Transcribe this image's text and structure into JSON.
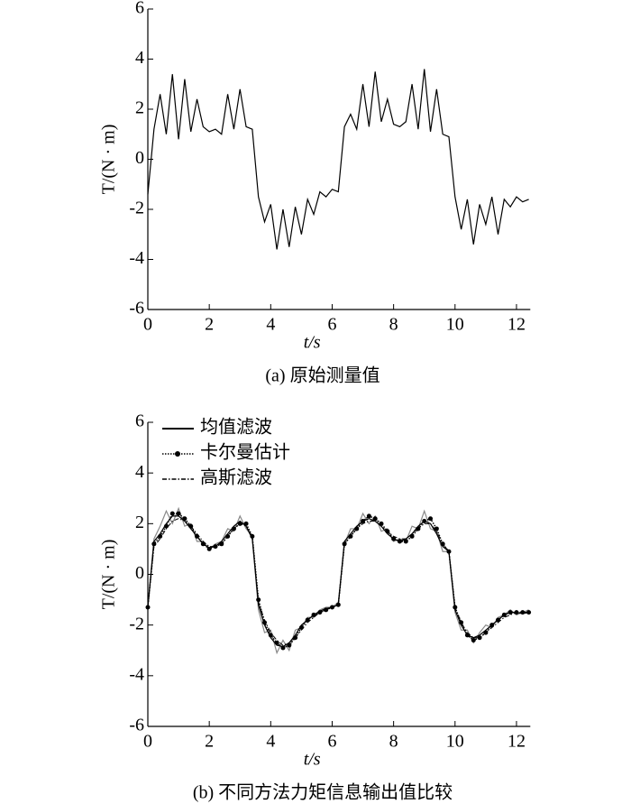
{
  "chart_data": [
    {
      "type": "line",
      "caption": "(a) 原始测量值",
      "xlabel": "t/s",
      "ylabel": "T/(N · m)",
      "xlim": [
        0,
        12.45
      ],
      "xticks": [
        0,
        2,
        4,
        6,
        8,
        10,
        12
      ],
      "ylim": [
        -6,
        6
      ],
      "yticks": [
        -6,
        -4,
        -2,
        0,
        2,
        4,
        6
      ],
      "x": [
        0,
        0.2,
        0.4,
        0.6,
        0.8,
        1,
        1.2,
        1.4,
        1.6,
        1.8,
        2,
        2.2,
        2.4,
        2.6,
        2.8,
        3,
        3.2,
        3.4,
        3.6,
        3.8,
        4,
        4.2,
        4.4,
        4.6,
        4.8,
        5,
        5.2,
        5.4,
        5.6,
        5.8,
        6,
        6.2,
        6.4,
        6.6,
        6.8,
        7,
        7.2,
        7.4,
        7.6,
        7.8,
        8,
        8.2,
        8.4,
        8.6,
        8.8,
        9,
        9.2,
        9.4,
        9.6,
        9.8,
        10,
        10.2,
        10.4,
        10.6,
        10.8,
        11,
        11.2,
        11.4,
        11.6,
        11.8,
        12,
        12.2,
        12.4
      ],
      "series": [
        {
          "color": "#000000",
          "style": "solid",
          "values": [
            -1.4,
            1.2,
            2.6,
            1.0,
            3.4,
            0.8,
            3.2,
            1.1,
            2.4,
            1.3,
            1.1,
            1.2,
            1.0,
            2.6,
            1.2,
            2.8,
            1.3,
            1.2,
            -1.5,
            -2.5,
            -1.8,
            -3.6,
            -2.0,
            -3.5,
            -1.9,
            -3.0,
            -1.6,
            -2.2,
            -1.3,
            -1.5,
            -1.2,
            -1.3,
            1.3,
            1.8,
            1.2,
            3.0,
            1.3,
            3.5,
            1.5,
            2.4,
            1.4,
            1.3,
            1.5,
            3.0,
            1.2,
            3.6,
            1.1,
            2.8,
            1.0,
            0.9,
            -1.5,
            -2.8,
            -1.6,
            -3.4,
            -1.8,
            -2.6,
            -1.5,
            -3.0,
            -1.6,
            -1.9,
            -1.5,
            -1.7,
            -1.6
          ]
        }
      ]
    },
    {
      "type": "line",
      "caption": "(b) 不同方法力矩信息输出值比较",
      "xlabel": "t/s",
      "ylabel": "T/(N · m)",
      "xlim": [
        0,
        12.45
      ],
      "xticks": [
        0,
        2,
        4,
        6,
        8,
        10,
        12
      ],
      "ylim": [
        -6,
        6
      ],
      "yticks": [
        -6,
        -4,
        -2,
        0,
        2,
        4,
        6
      ],
      "legend": "upper left",
      "x": [
        0,
        0.2,
        0.4,
        0.6,
        0.8,
        1,
        1.2,
        1.4,
        1.6,
        1.8,
        2,
        2.2,
        2.4,
        2.6,
        2.8,
        3,
        3.2,
        3.4,
        3.6,
        3.8,
        4,
        4.2,
        4.4,
        4.6,
        4.8,
        5,
        5.2,
        5.4,
        5.6,
        5.8,
        6,
        6.2,
        6.4,
        6.6,
        6.8,
        7,
        7.2,
        7.4,
        7.6,
        7.8,
        8,
        8.2,
        8.4,
        8.6,
        8.8,
        9,
        9.2,
        9.4,
        9.6,
        9.8,
        10,
        10.2,
        10.4,
        10.6,
        10.8,
        11,
        11.2,
        11.4,
        11.6,
        11.8,
        12,
        12.2,
        12.4
      ],
      "series": [
        {
          "color": "#888888",
          "style": "solid",
          "values": [
            -1.3,
            1.4,
            1.9,
            2.5,
            2.0,
            2.6,
            1.9,
            2.0,
            1.3,
            1.3,
            1.0,
            1.2,
            1.3,
            1.8,
            1.7,
            2.3,
            1.8,
            1.5,
            -1.4,
            -2.3,
            -2.2,
            -3.1,
            -2.6,
            -3.0,
            -2.2,
            -2.1,
            -1.7,
            -1.7,
            -1.4,
            -1.3,
            -1.3,
            -1.1,
            1.2,
            1.8,
            1.8,
            2.4,
            2.0,
            2.3,
            1.7,
            1.8,
            1.3,
            1.4,
            1.3,
            1.9,
            1.8,
            2.5,
            1.8,
            1.7,
            0.9,
            0.9,
            -1.5,
            -2.2,
            -2.2,
            -2.7,
            -2.3,
            -2.0,
            -2.1,
            -1.7,
            -1.6,
            -1.4,
            -1.6,
            -1.5,
            -1.4
          ]
        },
        {
          "name": "均值滤波",
          "color": "#000000",
          "style": "solid",
          "values": [
            -1.3,
            1.3,
            1.6,
            2.0,
            2.3,
            2.3,
            2.1,
            1.8,
            1.5,
            1.2,
            1.05,
            1.1,
            1.3,
            1.6,
            1.9,
            2.1,
            1.9,
            1.4,
            -1.2,
            -2.0,
            -2.5,
            -2.8,
            -2.85,
            -2.7,
            -2.4,
            -2.0,
            -1.8,
            -1.6,
            -1.45,
            -1.35,
            -1.3,
            -1.2,
            1.3,
            1.6,
            1.9,
            2.1,
            2.2,
            2.1,
            1.9,
            1.6,
            1.4,
            1.3,
            1.4,
            1.6,
            1.9,
            2.1,
            2.0,
            1.6,
            1.1,
            0.9,
            -1.4,
            -2.0,
            -2.4,
            -2.5,
            -2.4,
            -2.2,
            -2.0,
            -1.8,
            -1.6,
            -1.5,
            -1.5,
            -1.55,
            -1.5
          ]
        },
        {
          "name": "卡尔曼估计",
          "color": "#000000",
          "style": "dotted",
          "marker": "circle",
          "values": [
            -1.3,
            1.2,
            1.5,
            1.9,
            2.4,
            2.4,
            2.2,
            1.9,
            1.5,
            1.2,
            1.0,
            1.1,
            1.2,
            1.5,
            1.8,
            2.0,
            2.0,
            1.5,
            -1.0,
            -1.9,
            -2.4,
            -2.7,
            -2.9,
            -2.8,
            -2.5,
            -2.1,
            -1.8,
            -1.6,
            -1.5,
            -1.4,
            -1.3,
            -1.2,
            1.2,
            1.5,
            1.8,
            2.1,
            2.3,
            2.2,
            2.0,
            1.7,
            1.4,
            1.3,
            1.3,
            1.5,
            1.8,
            2.1,
            2.2,
            1.8,
            1.2,
            0.9,
            -1.3,
            -1.9,
            -2.4,
            -2.6,
            -2.5,
            -2.3,
            -2.0,
            -1.8,
            -1.6,
            -1.5,
            -1.5,
            -1.5,
            -1.5
          ]
        },
        {
          "name": "高斯滤波",
          "color": "#000000",
          "style": "dashdot",
          "values": [
            -1.3,
            1.1,
            1.4,
            1.8,
            2.1,
            2.2,
            2.1,
            1.9,
            1.6,
            1.3,
            1.1,
            1.1,
            1.2,
            1.5,
            1.8,
            2.0,
            1.9,
            1.5,
            -1.1,
            -1.8,
            -2.3,
            -2.6,
            -2.8,
            -2.7,
            -2.5,
            -2.2,
            -1.9,
            -1.7,
            -1.5,
            -1.4,
            -1.3,
            -1.2,
            1.2,
            1.5,
            1.8,
            2.0,
            2.1,
            2.1,
            1.9,
            1.7,
            1.5,
            1.4,
            1.4,
            1.6,
            1.8,
            2.0,
            2.0,
            1.7,
            1.2,
            0.9,
            -1.3,
            -1.9,
            -2.3,
            -2.5,
            -2.5,
            -2.3,
            -2.1,
            -1.9,
            -1.7,
            -1.6,
            -1.5,
            -1.5,
            -1.5
          ]
        }
      ]
    }
  ]
}
